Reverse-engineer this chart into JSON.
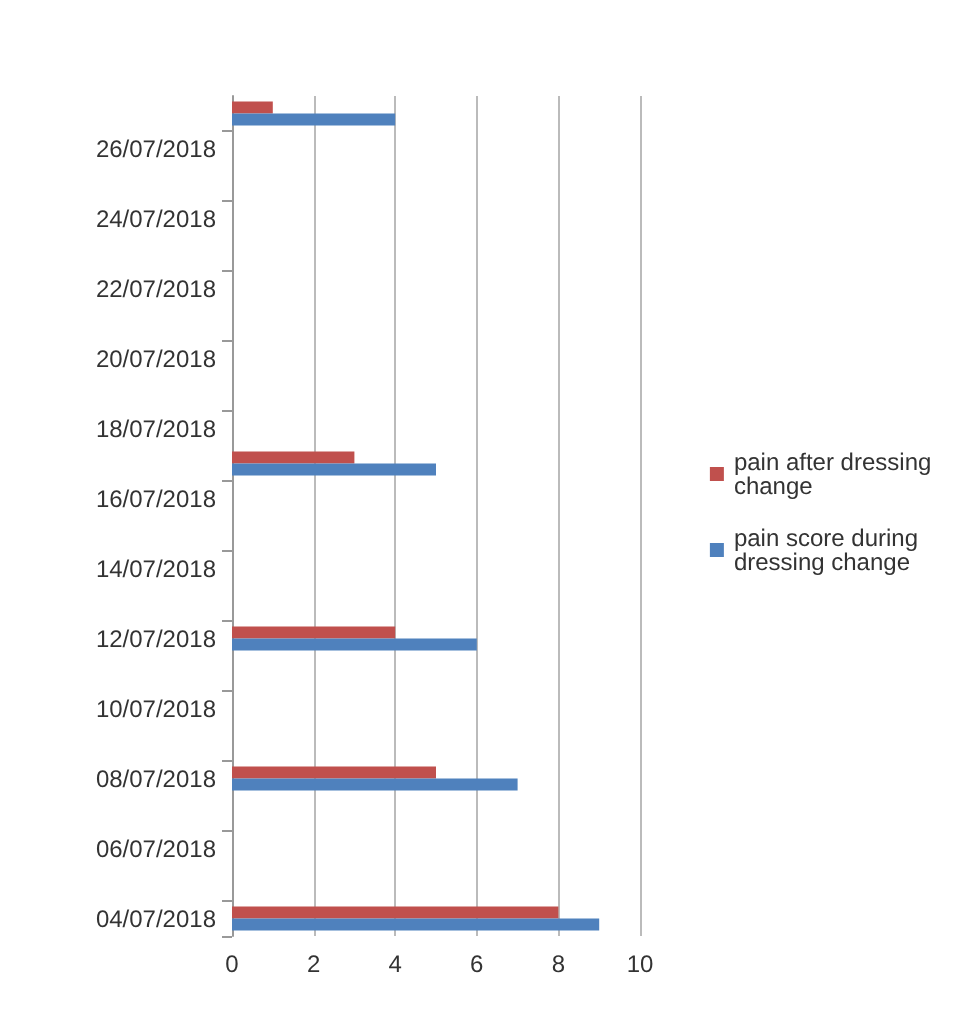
{
  "chart_data": {
    "type": "bar",
    "orientation": "horizontal",
    "categories": [
      null,
      "26/07/2018",
      null,
      "24/07/2018",
      null,
      "22/07/2018",
      null,
      "20/07/2018",
      null,
      "18/07/2018",
      null,
      "16/07/2018",
      null,
      "14/07/2018",
      null,
      "12/07/2018",
      null,
      "10/07/2018",
      null,
      "08/07/2018",
      null,
      "06/07/2018",
      null,
      "04/07/2018"
    ],
    "series": [
      {
        "name": "pain after dressing change",
        "color": "#c0504d",
        "values": [
          1,
          null,
          null,
          null,
          null,
          null,
          null,
          null,
          null,
          null,
          3,
          null,
          null,
          null,
          null,
          4,
          null,
          null,
          null,
          5,
          null,
          null,
          null,
          8
        ]
      },
      {
        "name": "pain score during dressing change",
        "color": "#4f81bd",
        "values": [
          4,
          null,
          null,
          null,
          null,
          null,
          null,
          null,
          null,
          null,
          5,
          null,
          null,
          null,
          null,
          6,
          null,
          null,
          null,
          7,
          null,
          null,
          null,
          9
        ]
      }
    ],
    "xlim": [
      0,
      10
    ],
    "xticks": [
      0,
      2,
      4,
      6,
      8,
      10
    ],
    "grid": "x",
    "legend": "right"
  }
}
